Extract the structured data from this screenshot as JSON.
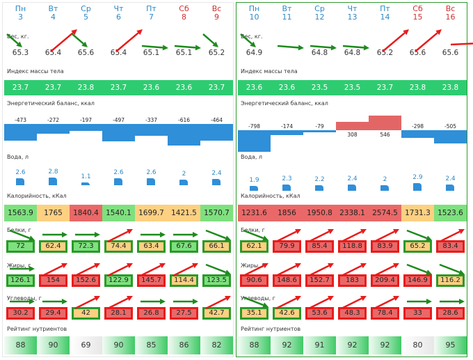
{
  "sections": {
    "weight": "Вес, кг.",
    "bmi": "Индекс массы тела",
    "energy": "Энергетический баланс, ккал",
    "water": "Вода, л",
    "calories": "Калорийность, кКал",
    "protein": "Белки, г",
    "fat": "Жиры, г",
    "carbs": "Углеводы, г",
    "rating": "Рейтинг нутриентов"
  },
  "colors": {
    "green": "#2ecc71",
    "blue": "#2f8fd8",
    "red_bar": "#e36666",
    "arrow_green": "#1e8a1e",
    "arrow_red": "#e81c1c"
  },
  "weeks": [
    {
      "days": [
        {
          "name": "Пн",
          "date": "3",
          "weekend": false
        },
        {
          "name": "Вт",
          "date": "4",
          "weekend": false
        },
        {
          "name": "Ср",
          "date": "5",
          "weekend": false
        },
        {
          "name": "Чт",
          "date": "6",
          "weekend": false
        },
        {
          "name": "Пт",
          "date": "7",
          "weekend": false
        },
        {
          "name": "Сб",
          "date": "8",
          "weekend": true
        },
        {
          "name": "Вс",
          "date": "9",
          "weekend": true
        }
      ],
      "weight": [
        "65.3",
        "65.4",
        "65.6",
        "65.4",
        "65.1",
        "65.1",
        "65.2"
      ],
      "weight_trend": [
        "down",
        "up",
        "down",
        "up",
        "flat",
        "flat",
        "down"
      ],
      "bmi": [
        "23.7",
        "23.7",
        "23.8",
        "23.7",
        "23.6",
        "23.6",
        "23.7"
      ],
      "energy": [
        -473,
        -272,
        -197,
        -497,
        -337,
        -616,
        -464
      ],
      "water": [
        2.6,
        2.8,
        1.1,
        2.6,
        2.6,
        2,
        2.4
      ],
      "water_labels": [
        "2.6",
        "2.8",
        "1.1",
        "2.6",
        "2.6",
        "2",
        "2.4"
      ],
      "calories": [
        "1563.9",
        "1765",
        "1840.4",
        "1540.1",
        "1699.7",
        "1421.5",
        "1570.7"
      ],
      "calories_color": [
        "g",
        "y",
        "r",
        "g",
        "y",
        "y",
        "g"
      ],
      "protein": [
        "72",
        "62.4",
        "72.3",
        "74.4",
        "63.4",
        "67.6",
        "66.1"
      ],
      "protein_color": [
        "g",
        "y",
        "g",
        "y",
        "y",
        "g",
        "y"
      ],
      "protein_trend": [
        "down",
        "flat",
        "flat",
        "up",
        "flat",
        "flat",
        "down"
      ],
      "fat": [
        "126.1",
        "154",
        "152.6",
        "122.9",
        "145.7",
        "114.4",
        "123.5"
      ],
      "fat_color": [
        "g",
        "r",
        "r",
        "g",
        "r",
        "y",
        "g"
      ],
      "fat_trend": [
        "flat",
        "up",
        "up",
        "up",
        "up",
        "up",
        "down"
      ],
      "carbs": [
        "30.2",
        "29.4",
        "42",
        "28.1",
        "26.8",
        "27.5",
        "42.7"
      ],
      "carbs_color": [
        "r",
        "r",
        "y",
        "r",
        "r",
        "r",
        "y"
      ],
      "carbs_trend": [
        "flat",
        "flat",
        "up",
        "up",
        "flat",
        "flat",
        "up"
      ],
      "rating": [
        "88",
        "90",
        "69",
        "90",
        "85",
        "86",
        "82"
      ],
      "rating_tone": [
        "good",
        "good",
        "ok",
        "good",
        "good",
        "good",
        "good"
      ]
    },
    {
      "days": [
        {
          "name": "Пн",
          "date": "10",
          "weekend": false
        },
        {
          "name": "Вт",
          "date": "11",
          "weekend": false
        },
        {
          "name": "Ср",
          "date": "12",
          "weekend": false
        },
        {
          "name": "Чт",
          "date": "13",
          "weekend": false
        },
        {
          "name": "Пт",
          "date": "14",
          "weekend": false
        },
        {
          "name": "Сб",
          "date": "15",
          "weekend": true
        },
        {
          "name": "Вс",
          "date": "16",
          "weekend": true
        }
      ],
      "weight": [
        "64.9",
        "",
        "64.8",
        "64.8",
        "65.2",
        "65.6",
        "65.6"
      ],
      "weight_trend": [
        "down",
        "flat",
        "flat",
        "flat",
        "up",
        "up",
        "flat"
      ],
      "bmi": [
        "23.6",
        "23.6",
        "23.5",
        "23.5",
        "23.7",
        "23.8",
        "23.8"
      ],
      "energy": [
        -798,
        -174,
        -79,
        308,
        546,
        -298,
        -505
      ],
      "water": [
        1.9,
        2.3,
        2.2,
        2.4,
        2,
        2.9,
        2.4
      ],
      "water_labels": [
        "1.9",
        "2.3",
        "2.2",
        "2.4",
        "2",
        "2.9",
        "2.4"
      ],
      "calories": [
        "1231.6",
        "1856",
        "1950.8",
        "2338.1",
        "2574.5",
        "1731.3",
        "1523.6"
      ],
      "calories_color": [
        "r",
        "r",
        "r",
        "r",
        "r",
        "y",
        "g"
      ],
      "protein": [
        "62.1",
        "79.9",
        "85.4",
        "118.8",
        "83.9",
        "65.2",
        "83.4"
      ],
      "protein_color": [
        "y",
        "r",
        "r",
        "r",
        "r",
        "y",
        "r"
      ],
      "protein_trend": [
        "down",
        "up",
        "up",
        "up",
        "up",
        "down",
        "up"
      ],
      "fat": [
        "90.6",
        "148.6",
        "152.7",
        "183",
        "209.4",
        "146.9",
        "116.2"
      ],
      "fat_color": [
        "r",
        "r",
        "r",
        "r",
        "r",
        "r",
        "y"
      ],
      "fat_trend": [
        "up",
        "up",
        "up",
        "up",
        "up",
        "down",
        "down"
      ],
      "carbs": [
        "35.1",
        "42.6",
        "53.6",
        "48.3",
        "78.4",
        "33",
        "28.6"
      ],
      "carbs_color": [
        "y",
        "y",
        "r",
        "r",
        "r",
        "r",
        "r"
      ],
      "carbs_trend": [
        "down",
        "up",
        "up",
        "up",
        "up",
        "flat",
        "flat"
      ],
      "rating": [
        "88",
        "92",
        "91",
        "92",
        "92",
        "80",
        "95"
      ],
      "rating_tone": [
        "good",
        "good",
        "good",
        "good",
        "good",
        "ok",
        "good"
      ]
    }
  ]
}
